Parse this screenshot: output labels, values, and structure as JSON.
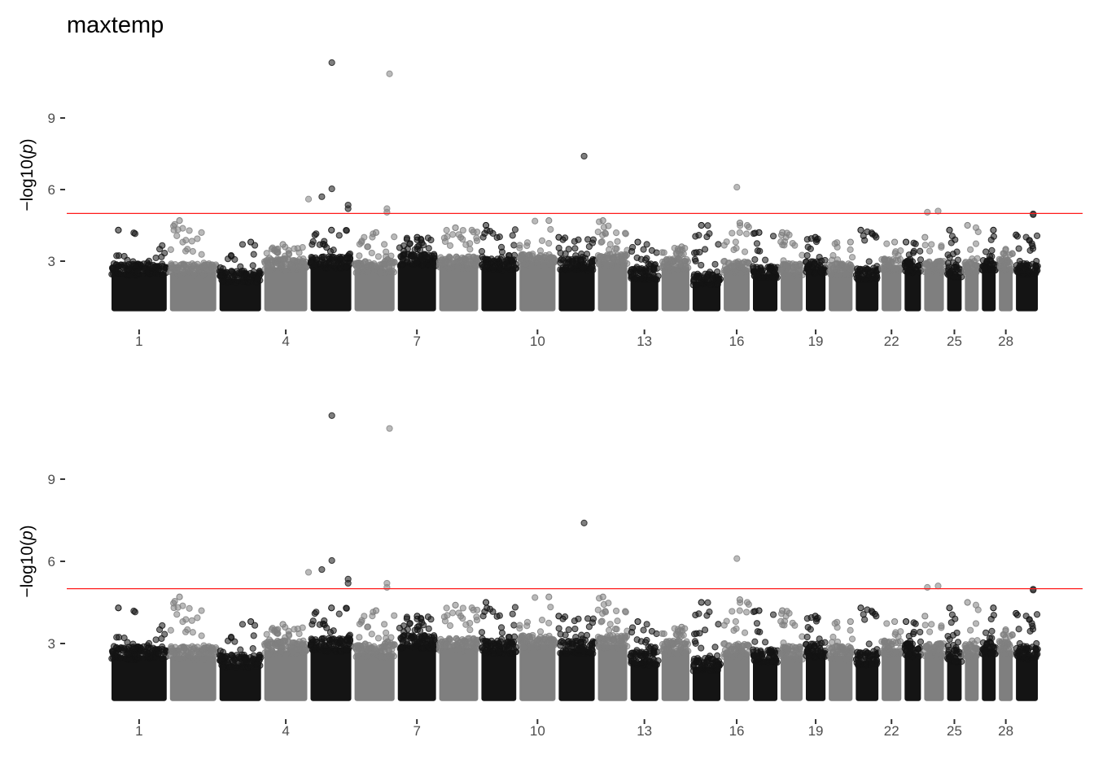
{
  "chart_data": {
    "type": "scatter",
    "subtype": "manhattan",
    "title": "maxtemp",
    "ylabel_prefix": "−log10(",
    "ylabel_var": "p",
    "ylabel_suffix": ")",
    "xlabel": "",
    "significance_threshold": 5,
    "threshold_color": "#ff1a1a",
    "colors": [
      "#141414",
      "#7f7f7f"
    ],
    "chromosomes": [
      {
        "chr": 1,
        "length": 158,
        "bulk_top": 2.8,
        "max": 4.3
      },
      {
        "chr": 2,
        "length": 134,
        "bulk_top": 2.8,
        "max": 4.7
      },
      {
        "chr": 3,
        "length": 121,
        "bulk_top": 2.5,
        "max": 3.8
      },
      {
        "chr": 4,
        "length": 125,
        "bulk_top": 3.0,
        "max": 3.7
      },
      {
        "chr": 5,
        "length": 119,
        "bulk_top": 3.1,
        "max": 4.3
      },
      {
        "chr": 6,
        "length": 117,
        "bulk_top": 2.9,
        "max": 4.2
      },
      {
        "chr": 7,
        "length": 112,
        "bulk_top": 3.2,
        "max": 4.0
      },
      {
        "chr": 8,
        "length": 114,
        "bulk_top": 3.1,
        "max": 4.4
      },
      {
        "chr": 9,
        "length": 103,
        "bulk_top": 3.0,
        "max": 4.5
      },
      {
        "chr": 10,
        "length": 106,
        "bulk_top": 3.2,
        "max": 4.7
      },
      {
        "chr": 11,
        "length": 106,
        "bulk_top": 3.0,
        "max": 4.0
      },
      {
        "chr": 12,
        "length": 88,
        "bulk_top": 3.2,
        "max": 4.7
      },
      {
        "chr": 13,
        "length": 84,
        "bulk_top": 2.6,
        "max": 3.8
      },
      {
        "chr": 14,
        "length": 84,
        "bulk_top": 3.0,
        "max": 3.6
      },
      {
        "chr": 15,
        "length": 84,
        "bulk_top": 2.4,
        "max": 4.5
      },
      {
        "chr": 16,
        "length": 79,
        "bulk_top": 2.9,
        "max": 4.6
      },
      {
        "chr": 17,
        "length": 75,
        "bulk_top": 2.7,
        "max": 4.2
      },
      {
        "chr": 18,
        "length": 68,
        "bulk_top": 2.8,
        "max": 4.2
      },
      {
        "chr": 19,
        "length": 62,
        "bulk_top": 2.9,
        "max": 4.0
      },
      {
        "chr": 20,
        "length": 73,
        "bulk_top": 2.8,
        "max": 3.8
      },
      {
        "chr": 21,
        "length": 70,
        "bulk_top": 2.6,
        "max": 4.3
      },
      {
        "chr": 22,
        "length": 62,
        "bulk_top": 3.0,
        "max": 3.8
      },
      {
        "chr": 23,
        "length": 53,
        "bulk_top": 2.9,
        "max": 3.8
      },
      {
        "chr": 24,
        "length": 62,
        "bulk_top": 2.9,
        "max": 4.0
      },
      {
        "chr": 25,
        "length": 48,
        "bulk_top": 2.7,
        "max": 4.3
      },
      {
        "chr": 26,
        "length": 46,
        "bulk_top": 2.9,
        "max": 4.5
      },
      {
        "chr": 27,
        "length": 46,
        "bulk_top": 3.0,
        "max": 4.3
      },
      {
        "chr": 28,
        "length": 46,
        "bulk_top": 3.0,
        "max": 3.5
      },
      {
        "chr": 29,
        "length": 68,
        "bulk_top": 2.8,
        "max": 4.1
      }
    ],
    "min_value": 0.9,
    "peaks": [
      {
        "chr": 5,
        "pos": 62,
        "value": 11.32
      },
      {
        "chr": 6,
        "pos": 99,
        "value": 10.85
      },
      {
        "chr": 11,
        "pos": 73,
        "value": 7.4
      },
      {
        "chr": 16,
        "pos": 40,
        "value": 6.1
      },
      {
        "chr": 5,
        "pos": 62,
        "value": 6.03
      },
      {
        "chr": 5,
        "pos": 35,
        "value": 5.7
      },
      {
        "chr": 4,
        "pos": 124,
        "value": 5.6
      },
      {
        "chr": 5,
        "pos": 106,
        "value": 5.35
      },
      {
        "chr": 5,
        "pos": 106,
        "value": 5.2
      },
      {
        "chr": 6,
        "pos": 92,
        "value": 5.2
      },
      {
        "chr": 6,
        "pos": 92,
        "value": 5.05
      },
      {
        "chr": 24,
        "pos": 13,
        "value": 5.05
      },
      {
        "chr": 24,
        "pos": 42,
        "value": 5.1
      },
      {
        "chr": 29,
        "pos": 51,
        "value": 4.98
      },
      {
        "chr": 29,
        "pos": 51,
        "value": 4.95
      }
    ],
    "x_tick_labels": [
      "1",
      "4",
      "7",
      "10",
      "13",
      "16",
      "19",
      "22",
      "25",
      "28"
    ],
    "y_tick_labels": [
      "3",
      "6",
      "9"
    ],
    "panels": [
      {
        "ylim": [
          0.9,
          11.4
        ],
        "grid": false
      },
      {
        "ylim": [
          0.95,
          11.4
        ],
        "grid": false
      }
    ]
  }
}
